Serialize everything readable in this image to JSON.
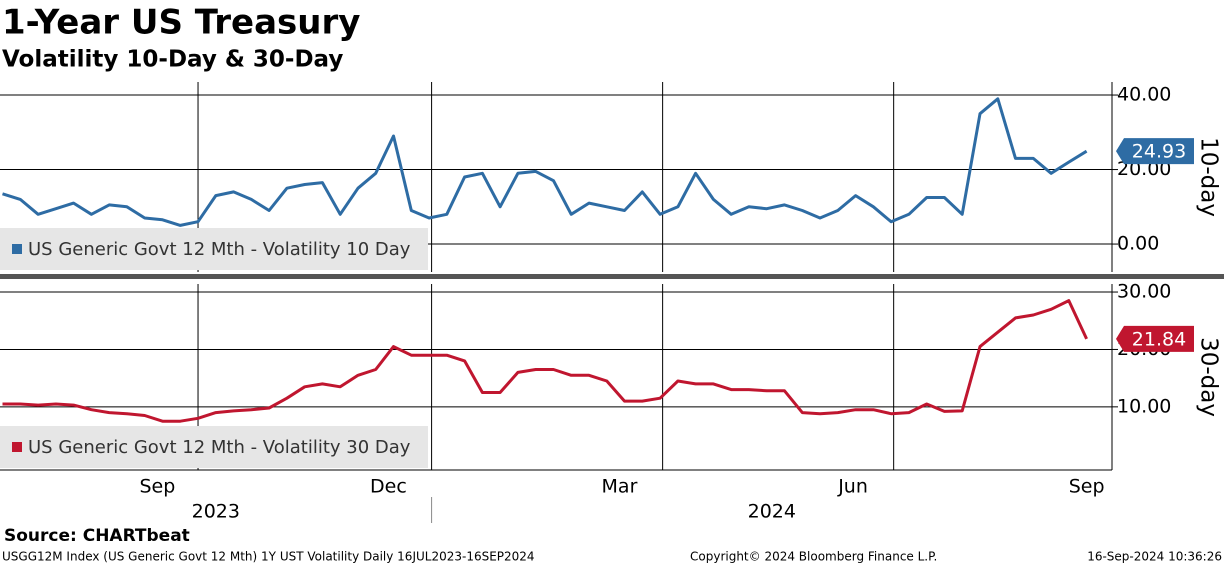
{
  "title": "1-Year US Treasury",
  "subtitle": "Volatility 10-Day & 30-Day",
  "source": "Source: CHARTbeat",
  "footer": {
    "left": "USGG12M Index (US Generic Govt 12 Mth) 1Y UST Volatility  Daily 16JUL2023-16SEP2024",
    "center": "Copyright© 2024 Bloomberg Finance L.P.",
    "right": "16-Sep-2024 10:36:26"
  },
  "chart_data": [
    {
      "type": "line",
      "ylabel": "10-day",
      "x": [
        "2023-07-16",
        "2023-07-23",
        "2023-07-30",
        "2023-08-06",
        "2023-08-13",
        "2023-08-20",
        "2023-08-27",
        "2023-09-03",
        "2023-09-10",
        "2023-09-17",
        "2023-09-24",
        "2023-10-01",
        "2023-10-08",
        "2023-10-15",
        "2023-10-22",
        "2023-10-29",
        "2023-11-05",
        "2023-11-12",
        "2023-11-19",
        "2023-11-26",
        "2023-12-03",
        "2023-12-10",
        "2023-12-17",
        "2023-12-24",
        "2023-12-31",
        "2024-01-07",
        "2024-01-14",
        "2024-01-21",
        "2024-01-28",
        "2024-02-04",
        "2024-02-11",
        "2024-02-18",
        "2024-02-25",
        "2024-03-03",
        "2024-03-10",
        "2024-03-17",
        "2024-03-24",
        "2024-03-31",
        "2024-04-07",
        "2024-04-14",
        "2024-04-21",
        "2024-04-28",
        "2024-05-05",
        "2024-05-12",
        "2024-05-19",
        "2024-05-26",
        "2024-06-02",
        "2024-06-09",
        "2024-06-16",
        "2024-06-23",
        "2024-06-30",
        "2024-07-07",
        "2024-07-14",
        "2024-07-21",
        "2024-07-28",
        "2024-08-04",
        "2024-08-11",
        "2024-08-18",
        "2024-08-25",
        "2024-09-01",
        "2024-09-08",
        "2024-09-15"
      ],
      "xlim": [
        "2023-07-15",
        "2024-09-25"
      ],
      "xgrid": [
        "2023-10-01",
        "2024-01-01",
        "2024-04-01",
        "2024-07-01"
      ],
      "ylim": [
        -7.5,
        43.5
      ],
      "yticks": [
        {
          "value": 40,
          "label": "40.00"
        },
        {
          "value": 20,
          "label": "20.00"
        },
        {
          "value": 0,
          "label": "0.00"
        }
      ],
      "grid": true,
      "legend": "lower left",
      "series": [
        {
          "name": "US Generic Govt 12 Mth - Volatility 10 Day",
          "color": "#2e6ca4",
          "values": [
            13.5,
            12,
            8,
            9.5,
            11,
            8,
            10.5,
            10,
            7,
            6.5,
            5,
            6,
            13,
            14,
            12,
            9,
            15,
            16,
            16.5,
            8,
            15,
            19,
            29,
            9,
            7,
            8,
            18,
            19,
            10,
            19,
            19.5,
            17,
            8,
            11,
            10,
            9,
            14,
            8,
            10,
            19,
            12,
            8,
            10,
            9.5,
            10.5,
            9,
            7,
            9,
            13,
            10,
            6,
            8,
            12.5,
            12.5,
            8,
            35,
            39,
            23,
            23,
            19,
            22,
            24.93
          ]
        }
      ]
    },
    {
      "type": "line",
      "ylabel": "30-day",
      "x": [
        "2023-07-16",
        "2023-07-23",
        "2023-07-30",
        "2023-08-06",
        "2023-08-13",
        "2023-08-20",
        "2023-08-27",
        "2023-09-03",
        "2023-09-10",
        "2023-09-17",
        "2023-09-24",
        "2023-10-01",
        "2023-10-08",
        "2023-10-15",
        "2023-10-22",
        "2023-10-29",
        "2023-11-05",
        "2023-11-12",
        "2023-11-19",
        "2023-11-26",
        "2023-12-03",
        "2023-12-10",
        "2023-12-17",
        "2023-12-24",
        "2023-12-31",
        "2024-01-07",
        "2024-01-14",
        "2024-01-21",
        "2024-01-28",
        "2024-02-04",
        "2024-02-11",
        "2024-02-18",
        "2024-02-25",
        "2024-03-03",
        "2024-03-10",
        "2024-03-17",
        "2024-03-24",
        "2024-03-31",
        "2024-04-07",
        "2024-04-14",
        "2024-04-21",
        "2024-04-28",
        "2024-05-05",
        "2024-05-12",
        "2024-05-19",
        "2024-05-26",
        "2024-06-02",
        "2024-06-09",
        "2024-06-16",
        "2024-06-23",
        "2024-06-30",
        "2024-07-07",
        "2024-07-14",
        "2024-07-21",
        "2024-07-28",
        "2024-08-04",
        "2024-08-11",
        "2024-08-18",
        "2024-08-25",
        "2024-09-01",
        "2024-09-08",
        "2024-09-15"
      ],
      "xlim": [
        "2023-07-15",
        "2024-09-25"
      ],
      "xgrid": [
        "2023-10-01",
        "2024-01-01",
        "2024-04-01",
        "2024-07-01"
      ],
      "xticks": [
        {
          "value": "2023-09-15",
          "label": "Sep"
        },
        {
          "value": "2023-12-15",
          "label": "Dec"
        },
        {
          "value": "2024-03-15",
          "label": "Mar"
        },
        {
          "value": "2024-06-15",
          "label": "Jun"
        },
        {
          "value": "2024-09-15",
          "label": "Sep"
        }
      ],
      "years": [
        "2023",
        "2024"
      ],
      "year_boundary": "2024-01-01",
      "ylim": [
        -1,
        31.4
      ],
      "yticks": [
        {
          "value": 30,
          "label": "30.00"
        },
        {
          "value": 20,
          "label": "20.00"
        },
        {
          "value": 10,
          "label": "10.00"
        }
      ],
      "grid": true,
      "legend": "lower left",
      "series": [
        {
          "name": "US Generic Govt 12 Mth - Volatility 30 Day",
          "color": "#c0162f",
          "values": [
            10.5,
            10.5,
            10.3,
            10.5,
            10.3,
            9.5,
            9,
            8.8,
            8.5,
            7.5,
            7.5,
            8,
            9,
            9.3,
            9.5,
            9.8,
            11.5,
            13.5,
            14,
            13.5,
            15.5,
            16.5,
            20.5,
            19,
            19,
            19,
            18,
            12.5,
            12.5,
            16,
            16.5,
            16.5,
            15.5,
            15.5,
            14.5,
            11,
            11,
            11.5,
            14.5,
            14,
            14,
            13,
            13,
            12.8,
            12.8,
            9,
            8.8,
            9,
            9.5,
            9.5,
            8.8,
            9,
            10.5,
            9.2,
            9.3,
            20.5,
            23,
            25.5,
            26,
            27,
            28.5,
            21.84
          ]
        }
      ]
    }
  ]
}
